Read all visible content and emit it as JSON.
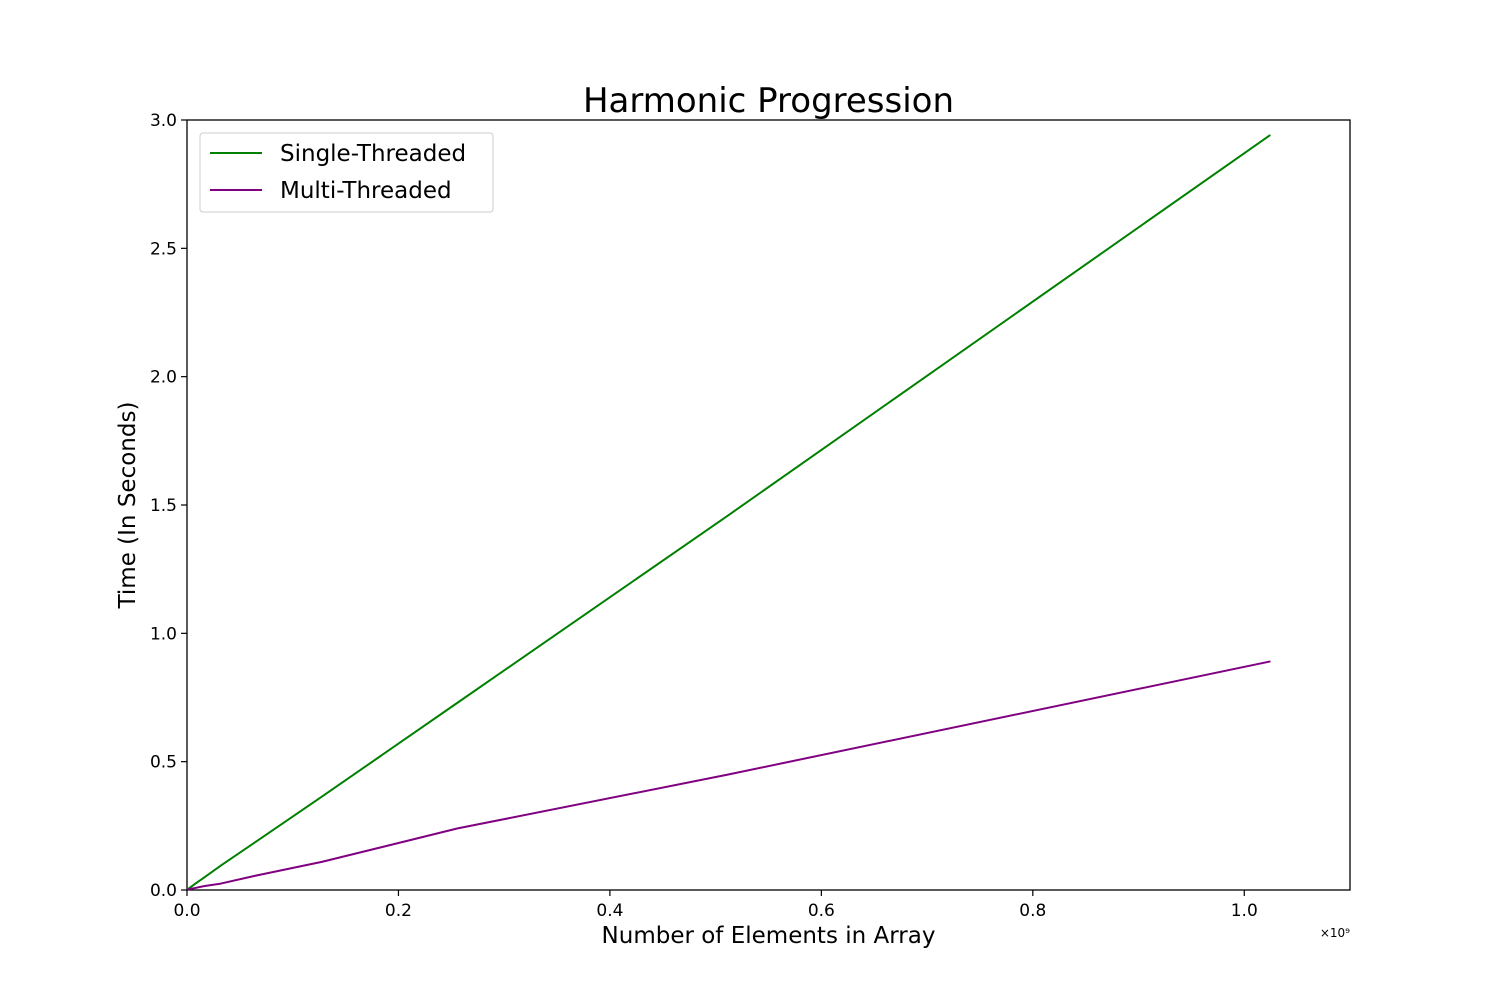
{
  "chart_data": {
    "type": "line",
    "title": "Harmonic Progression",
    "xlabel": "Number of Elements in Array",
    "ylabel": "Time (In Seconds)",
    "x_offset_text": "×10⁹",
    "xlim": [
      0.0,
      1.1
    ],
    "ylim": [
      0.0,
      3.0
    ],
    "x_ticks": [
      0.0,
      0.2,
      0.4,
      0.6,
      0.8,
      1.0
    ],
    "x_tick_labels": [
      "0.0",
      "0.2",
      "0.4",
      "0.6",
      "0.8",
      "1.0"
    ],
    "y_ticks": [
      0.0,
      0.5,
      1.0,
      1.5,
      2.0,
      2.5,
      3.0
    ],
    "y_tick_labels": [
      "0.0",
      "0.5",
      "1.0",
      "1.5",
      "2.0",
      "2.5",
      "3.0"
    ],
    "grid": false,
    "legend_position": "upper-left",
    "series": [
      {
        "name": "Single-Threaded",
        "color": "#008000",
        "x": [
          0.0,
          0.001,
          0.002,
          0.004,
          0.008,
          0.016,
          0.032,
          0.064,
          0.128,
          0.256,
          0.512,
          1.024
        ],
        "y": [
          0.0,
          0.004,
          0.007,
          0.013,
          0.025,
          0.048,
          0.095,
          0.185,
          0.365,
          0.73,
          1.46,
          2.94
        ]
      },
      {
        "name": "Multi-Threaded",
        "color": "#800080",
        "x": [
          0.0,
          0.001,
          0.002,
          0.004,
          0.008,
          0.016,
          0.032,
          0.064,
          0.128,
          0.256,
          0.512,
          1.024
        ],
        "y": [
          0.0,
          0.002,
          0.003,
          0.005,
          0.008,
          0.015,
          0.025,
          0.055,
          0.11,
          0.24,
          0.45,
          0.89
        ]
      }
    ]
  }
}
